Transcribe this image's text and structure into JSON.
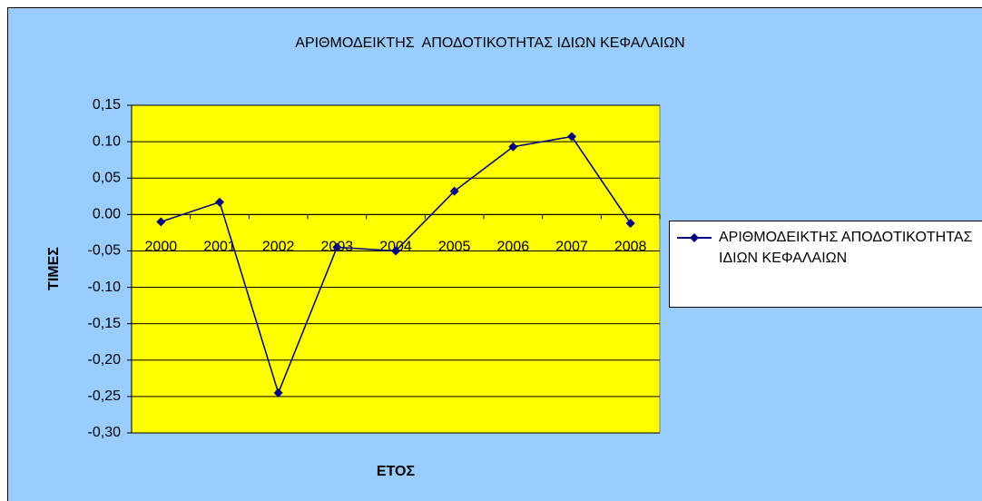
{
  "chart_data": {
    "type": "line",
    "title": "ΑΡΙΘΜΟΔΕΙΚΤΗΣ  ΑΠΟΔΟΤΙΚΟΤΗΤΑΣ ΙΔΙΩΝ ΚΕΦΑΛΑΙΩΝ",
    "x_label": "ΕΤΟΣ",
    "y_label": "ΤΙΜΕΣ",
    "categories": [
      "2000",
      "2001",
      "2002",
      "2003",
      "2004",
      "2005",
      "2006",
      "2007",
      "2008"
    ],
    "series": [
      {
        "name": "ΑΡΙΘΜΟΔΕΙΚΤΗΣ ΑΠΟΔΟΤΙΚΟΤΗΤΑΣ ΙΔΙΩΝ ΚΕΦΑΛΑΙΩΝ",
        "color": "#000080",
        "values": [
          -0.01,
          0.017,
          -0.245,
          -0.045,
          -0.05,
          0.032,
          0.093,
          0.107,
          -0.012
        ]
      }
    ],
    "ylim": [
      -0.3,
      0.15
    ],
    "yticks": [
      {
        "value": -0.3,
        "label": "-0,30"
      },
      {
        "value": -0.25,
        "label": "-0,25"
      },
      {
        "value": -0.2,
        "label": "-0,20"
      },
      {
        "value": -0.15,
        "label": "-0,15"
      },
      {
        "value": -0.1,
        "label": "-0.10"
      },
      {
        "value": -0.05,
        "label": "-0,05"
      },
      {
        "value": 0,
        "label": "0.00"
      },
      {
        "value": 0.05,
        "label": "0,05"
      },
      {
        "value": 0.1,
        "label": "0.10"
      },
      {
        "value": 0.15,
        "label": "0,15"
      }
    ],
    "grid": true,
    "legend": "right",
    "plot_color": "#ffff00",
    "background_color": "#99ccff"
  }
}
